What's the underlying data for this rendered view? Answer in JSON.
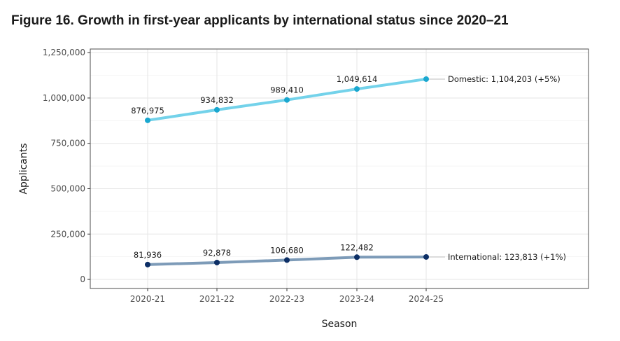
{
  "figure": {
    "title": "Figure 16. Growth in first-year applicants by international status since 2020–21"
  },
  "chart_data": {
    "type": "line",
    "title": "Figure 16. Growth in first-year applicants by international status since 2020–21",
    "xlabel": "Season",
    "ylabel": "Applicants",
    "categories": [
      "2020-21",
      "2021-22",
      "2022-23",
      "2023-24",
      "2024-25"
    ],
    "yticks": [
      0,
      250000,
      500000,
      750000,
      1000000,
      1250000
    ],
    "ytick_labels": [
      "0",
      "250,000",
      "500,000",
      "750,000",
      "1,000,000",
      "1,250,000"
    ],
    "ylim": [
      -50000,
      1270000
    ],
    "grid": true,
    "legend": "none (direct end labels)",
    "series": [
      {
        "name": "Domestic",
        "values": [
          876975,
          934832,
          989410,
          1049614,
          1104203
        ],
        "point_labels": [
          "876,975",
          "934,832",
          "989,410",
          "1,049,614",
          ""
        ],
        "end_label": "Domestic: 1,104,203 (+5%)",
        "line_color": "#73d2ea",
        "point_color": "#1aa7cf"
      },
      {
        "name": "International",
        "values": [
          81936,
          92878,
          106680,
          122482,
          123813
        ],
        "point_labels": [
          "81,936",
          "92,878",
          "106,680",
          "122,482",
          ""
        ],
        "end_label": "International: 123,813 (+1%)",
        "line_color": "#7d9bb8",
        "point_color": "#0d2f66"
      }
    ]
  }
}
